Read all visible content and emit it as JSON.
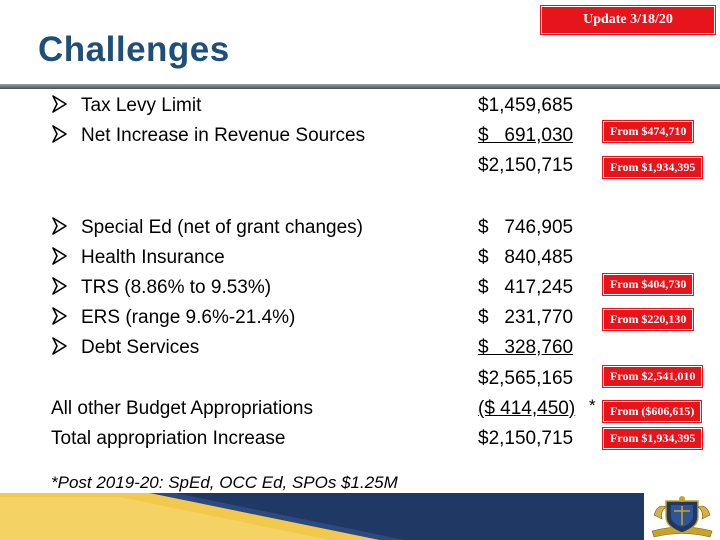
{
  "update_badge": "Update 3/18/20",
  "title": "Challenges",
  "rows": [
    {
      "label": "Tax Levy Limit",
      "amount": "$1,459,685"
    },
    {
      "label": "Net Increase in Revenue Sources",
      "amount": "$   691,030",
      "note": "From $474,710"
    },
    {
      "amount": "$2,150,715",
      "note": "From $1,934,395"
    },
    {
      "label": "Special Ed (net of grant changes)",
      "amount": "$   746,905"
    },
    {
      "label": "Health Insurance",
      "amount": "$   840,485"
    },
    {
      "label": "TRS (8.86% to 9.53%)",
      "amount": "$   417,245",
      "note": "From $404,730"
    },
    {
      "label": "ERS (range 9.6%-21.4%)",
      "amount": "$   231,770",
      "note": "From $220,130"
    },
    {
      "label": "Debt Services",
      "amount": "$   328,760"
    },
    {
      "amount": "$2,565,165",
      "note": "From $2,541,010"
    },
    {
      "label": "All other Budget Appropriations",
      "amount": "($ 414,450)",
      "suffix": "*",
      "note": "From ($606,615)"
    },
    {
      "label": "Total appropriation Increase",
      "amount": "$2,150,715",
      "note": "From $1,934,395"
    }
  ],
  "footnote": "*Post 2019-20: SpEd, OCC Ed, SPOs  $1.25M",
  "colors": {
    "title": "#1f4e79",
    "badge": "#e8141c",
    "band_navy": "#1f3864",
    "band_gold": "#f2c94c"
  },
  "icons": {
    "bullet": "arrow-bullet-icon",
    "logo": "school-crest-logo"
  }
}
